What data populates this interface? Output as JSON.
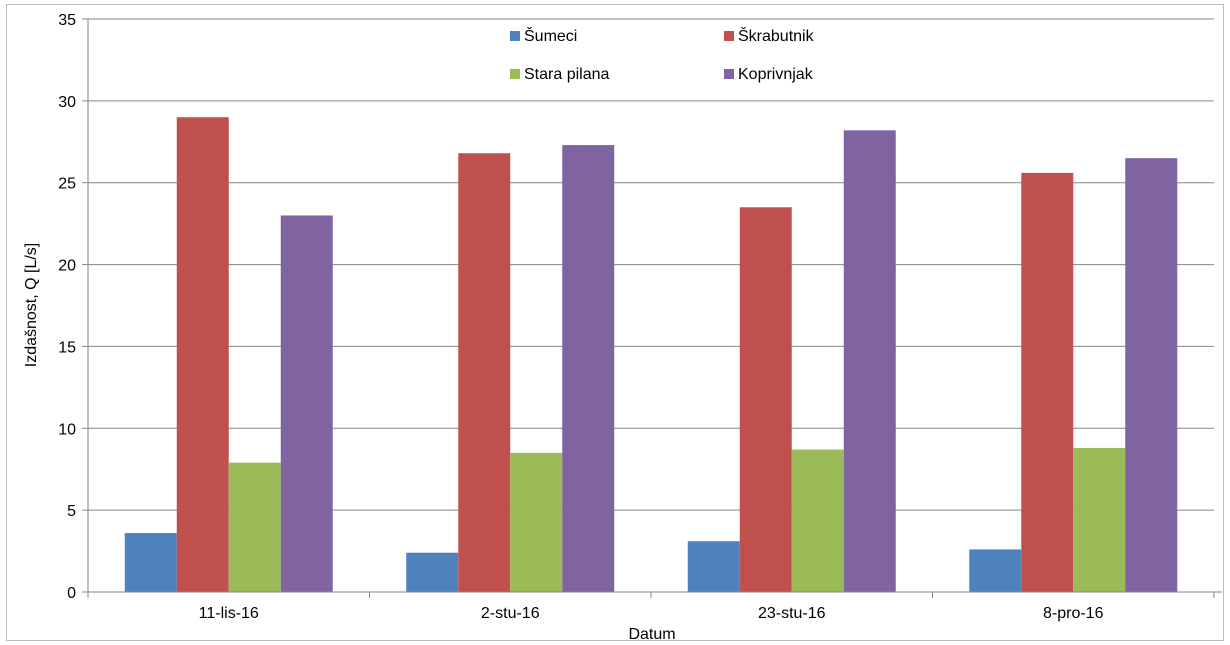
{
  "chart_data": {
    "type": "bar",
    "categories": [
      "11-lis-16",
      "2-stu-16",
      "23-stu-16",
      "8-pro-16"
    ],
    "series": [
      {
        "name": "Šumeci",
        "color": "#4f81bd",
        "values": [
          3.6,
          2.4,
          3.1,
          2.6
        ]
      },
      {
        "name": "Škrabutnik",
        "color": "#c0504d",
        "values": [
          29.0,
          26.8,
          23.5,
          25.6
        ]
      },
      {
        "name": "Stara pilana",
        "color": "#9bbb59",
        "values": [
          7.9,
          8.5,
          8.7,
          8.8
        ]
      },
      {
        "name": "Koprivnjak",
        "color": "#8064a2",
        "values": [
          23.0,
          27.3,
          28.2,
          26.5
        ]
      }
    ],
    "xlabel": "Datum",
    "ylabel": "Izdašnost, Q [L/s]",
    "ylim": [
      0,
      35
    ],
    "yticks": [
      0,
      5,
      10,
      15,
      20,
      25,
      30,
      35
    ],
    "grid": true,
    "legend_position": "top"
  }
}
